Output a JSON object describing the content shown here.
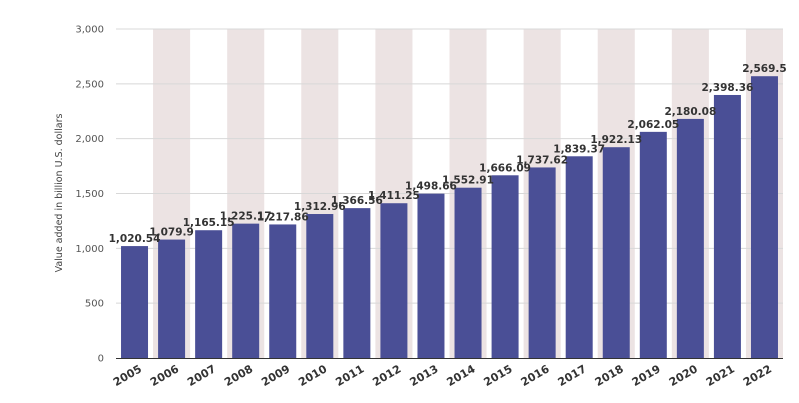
{
  "chart_data": {
    "type": "bar",
    "title": "",
    "xlabel": "",
    "ylabel": "Value added in billion U.S. dollars",
    "categories": [
      "2005",
      "2006",
      "2007",
      "2008",
      "2009",
      "2010",
      "2011",
      "2012",
      "2013",
      "2014",
      "2015",
      "2016",
      "2017",
      "2018",
      "2019",
      "2020",
      "2021",
      "2022"
    ],
    "values": [
      1020.54,
      1079.9,
      1165.15,
      1225.17,
      1217.86,
      1312.96,
      1366.56,
      1411.25,
      1498.66,
      1552.91,
      1666.09,
      1737.62,
      1839.37,
      1922.13,
      2062.05,
      2180.08,
      2398.36,
      2569.5
    ],
    "value_labels": [
      "1,020.54",
      "1,079.9",
      "1,165.15",
      "1,225.17",
      "1,217.86",
      "1,312.96",
      "1,366.56",
      "1,411.25",
      "1,498.66",
      "1,552.91",
      "1,666.09",
      "1,737.62",
      "1,839.37",
      "1,922.13",
      "2,062.05",
      "2,180.08",
      "2,398.36",
      "2,569.5"
    ],
    "yticks": [
      0,
      500,
      1000,
      1500,
      2000,
      2500,
      3000
    ],
    "ytick_labels": [
      "0",
      "500",
      "1,000",
      "1,500",
      "2,000",
      "2,500",
      "3,000"
    ],
    "ylim": [
      0,
      3000
    ],
    "grid": true,
    "legend": "none",
    "colors": {
      "bar": "#4a4f96",
      "band": "#ece3e3",
      "grid": "#d8d8d8",
      "axis": "#333333"
    }
  }
}
